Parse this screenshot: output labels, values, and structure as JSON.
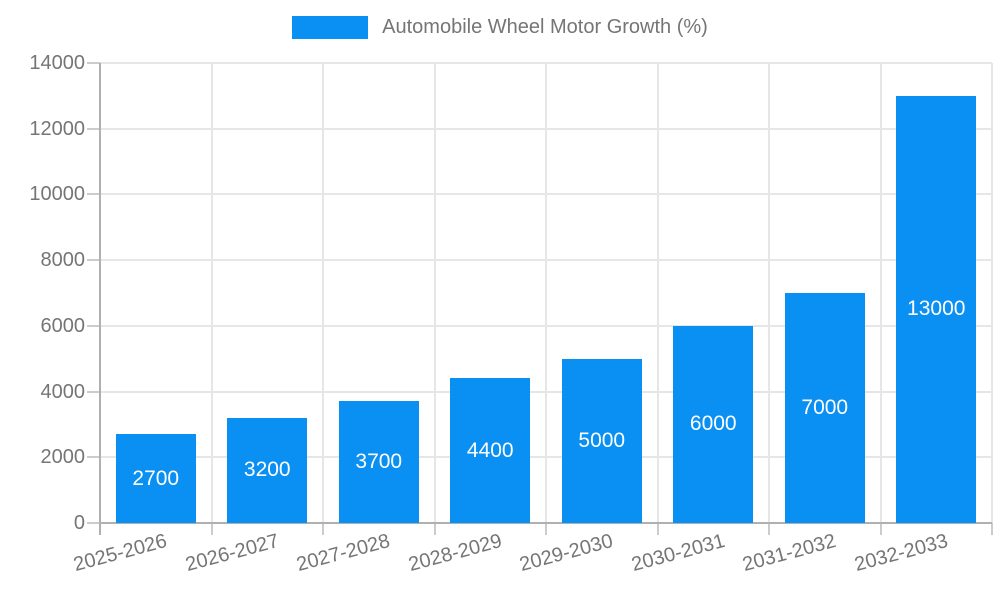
{
  "chart_data": {
    "type": "bar",
    "title": "Automobile Wheel Motor Growth (%)",
    "categories": [
      "2025-2026",
      "2026-2027",
      "2027-2028",
      "2028-2029",
      "2029-2030",
      "2030-2031",
      "2031-2032",
      "2032-2033"
    ],
    "values": [
      2700,
      3200,
      3700,
      4400,
      5000,
      6000,
      7000,
      13000
    ],
    "bar_labels": [
      "2700",
      "3200",
      "3700",
      "4400",
      "5000",
      "6000",
      "7000",
      "13000"
    ],
    "xlabel": "",
    "ylabel": "",
    "ylim": [
      0,
      14000
    ],
    "yticks": [
      0,
      2000,
      4000,
      6000,
      8000,
      10000,
      12000,
      14000
    ],
    "ytick_labels": [
      "0",
      "2000",
      "4000",
      "6000",
      "8000",
      "10000",
      "12000",
      "14000"
    ],
    "grid": true,
    "legend_position": "top-center",
    "x_label_rotation_deg": -15,
    "colors": {
      "bar": "#0a90f2",
      "bar_label": "#ffffff",
      "axis_text": "#757575",
      "legend_text": "#757575",
      "gridline": "#e6e6e6",
      "tick": "#cccccc",
      "axis_line": "#b0b0b0",
      "background": "#ffffff"
    }
  }
}
